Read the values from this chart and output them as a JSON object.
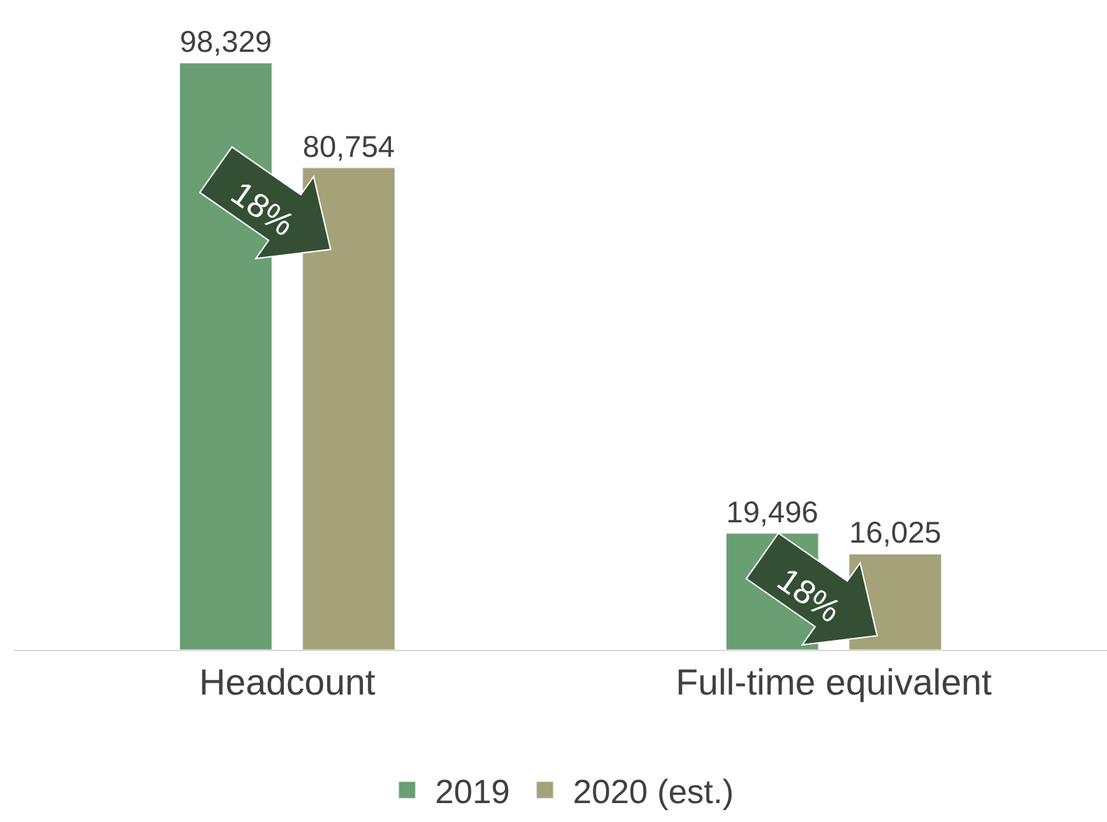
{
  "chart_data": {
    "type": "bar",
    "categories": [
      "Headcount",
      "Full-time equivalent"
    ],
    "series": [
      {
        "name": "2019",
        "color": "#6a9e73",
        "values": [
          98329,
          19496
        ],
        "value_labels": [
          "98,329",
          "19,496"
        ]
      },
      {
        "name": "2020 (est.)",
        "color": "#a3a279",
        "values": [
          80754,
          16025
        ],
        "value_labels": [
          "80,754",
          "16,025"
        ]
      }
    ],
    "legend": "bottom",
    "annotations": [
      "18%",
      "18%"
    ]
  }
}
